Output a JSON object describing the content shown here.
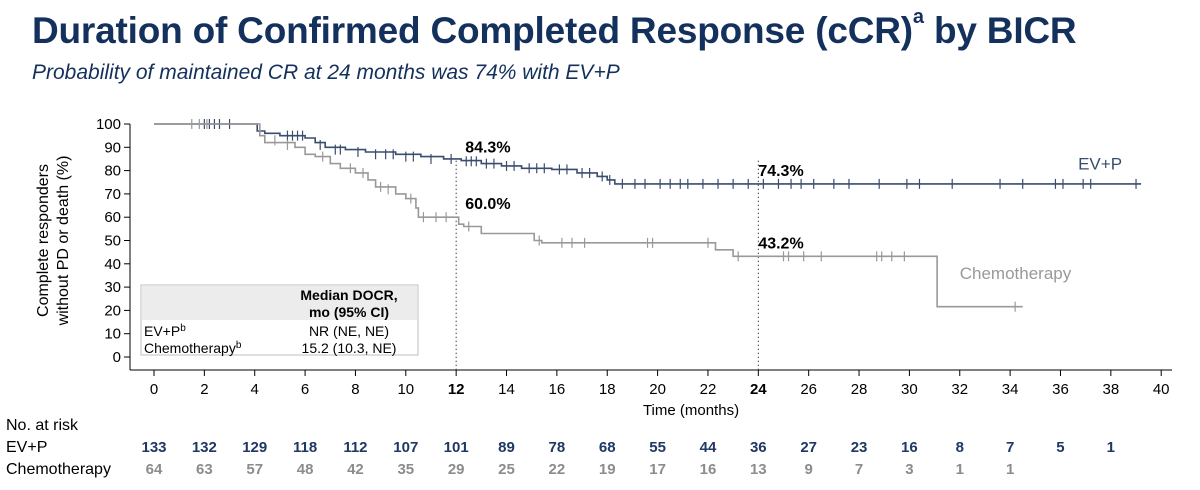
{
  "title": "Duration of Confirmed Completed Response (cCR)",
  "title_superscript": "a",
  "title_suffix": "by BICR",
  "subtitle": "Probability of maintained CR at 24 months was 74% with EV+P",
  "colors": {
    "evp": "#3a4d6e",
    "chemo": "#999999",
    "title": "#14305c",
    "evp_risk": "#1f3864",
    "chemo_risk": "#8c8c8c"
  },
  "chart_data": {
    "type": "line",
    "subtype": "kaplan-meier",
    "xlabel": "Time (months)",
    "ylabel": [
      "Complete responders",
      "without PD or death (%)"
    ],
    "xlim": [
      -1,
      40.5
    ],
    "ylim": [
      0,
      100
    ],
    "xticks": [
      0,
      2,
      4,
      6,
      8,
      10,
      12,
      14,
      16,
      18,
      20,
      22,
      24,
      26,
      28,
      30,
      32,
      34,
      36,
      38,
      40
    ],
    "xticks_bold": [
      12,
      24
    ],
    "yticks": [
      0,
      10,
      20,
      30,
      40,
      50,
      60,
      70,
      80,
      90,
      100
    ],
    "series": [
      {
        "name": "EV+P",
        "label_position": [
          36.7,
          80.5
        ],
        "steps": [
          [
            0,
            100
          ],
          [
            3.9,
            100
          ],
          [
            4.1,
            97
          ],
          [
            4.4,
            96
          ],
          [
            5,
            95
          ],
          [
            6,
            94
          ],
          [
            6.4,
            92
          ],
          [
            6.8,
            90
          ],
          [
            7.6,
            89
          ],
          [
            8.4,
            88
          ],
          [
            9.6,
            87
          ],
          [
            10.6,
            86
          ],
          [
            11.5,
            85
          ],
          [
            12.2,
            84.3
          ],
          [
            13,
            83
          ],
          [
            13.8,
            82
          ],
          [
            14.6,
            81
          ],
          [
            15.8,
            80.5
          ],
          [
            16.8,
            79
          ],
          [
            17.6,
            77.5
          ],
          [
            18,
            76
          ],
          [
            18.3,
            74.3
          ],
          [
            39.2,
            74.3
          ]
        ],
        "censors": [
          [
            2,
            100
          ],
          [
            2.2,
            100
          ],
          [
            2.4,
            100
          ],
          [
            2.6,
            100
          ],
          [
            3,
            100
          ],
          [
            5.3,
            95
          ],
          [
            5.5,
            95
          ],
          [
            5.7,
            95
          ],
          [
            5.9,
            95
          ],
          [
            6.6,
            91
          ],
          [
            7.2,
            89
          ],
          [
            7.4,
            89
          ],
          [
            8.1,
            88
          ],
          [
            8.8,
            87
          ],
          [
            9.2,
            87
          ],
          [
            9.5,
            87
          ],
          [
            10,
            86
          ],
          [
            10.3,
            86
          ],
          [
            11,
            85
          ],
          [
            11.8,
            85
          ],
          [
            12.4,
            84
          ],
          [
            12.6,
            84
          ],
          [
            12.8,
            84
          ],
          [
            13.2,
            83
          ],
          [
            13.5,
            83
          ],
          [
            14,
            82
          ],
          [
            14.3,
            82
          ],
          [
            14.9,
            81
          ],
          [
            15.2,
            81
          ],
          [
            15.5,
            81
          ],
          [
            16.1,
            80.5
          ],
          [
            16.4,
            80.5
          ],
          [
            17,
            79
          ],
          [
            17.3,
            79
          ],
          [
            17.8,
            77.5
          ],
          [
            18.1,
            76
          ],
          [
            18.6,
            74.3
          ],
          [
            19.1,
            74.3
          ],
          [
            19.5,
            74.3
          ],
          [
            20.1,
            74.3
          ],
          [
            20.5,
            74.3
          ],
          [
            20.9,
            74.3
          ],
          [
            21.2,
            74.3
          ],
          [
            21.8,
            74.3
          ],
          [
            22.4,
            74.3
          ],
          [
            23,
            74.3
          ],
          [
            23.6,
            74.3
          ],
          [
            24.2,
            74.3
          ],
          [
            24.8,
            74.3
          ],
          [
            25.3,
            74.3
          ],
          [
            25.7,
            74.3
          ],
          [
            26.2,
            74.3
          ],
          [
            27,
            74.3
          ],
          [
            27.6,
            74.3
          ],
          [
            28.8,
            74.3
          ],
          [
            29.9,
            74.3
          ],
          [
            30.4,
            74.3
          ],
          [
            31.7,
            74.3
          ],
          [
            33.6,
            74.3
          ],
          [
            34.5,
            74.3
          ],
          [
            35.8,
            74.3
          ],
          [
            36.1,
            74.3
          ],
          [
            36.9,
            74.3
          ],
          [
            37.2,
            74.3
          ],
          [
            39,
            74.3
          ]
        ]
      },
      {
        "name": "Chemotherapy",
        "label_position": [
          32,
          33.5
        ],
        "steps": [
          [
            0,
            100
          ],
          [
            3.9,
            100
          ],
          [
            4.2,
            95
          ],
          [
            4.4,
            92
          ],
          [
            5.6,
            90
          ],
          [
            6,
            87
          ],
          [
            6.4,
            86
          ],
          [
            7,
            83
          ],
          [
            7.4,
            81
          ],
          [
            8,
            79
          ],
          [
            8.5,
            76
          ],
          [
            8.8,
            73
          ],
          [
            9.6,
            70
          ],
          [
            10,
            68
          ],
          [
            10.4,
            64
          ],
          [
            10.5,
            60
          ],
          [
            12,
            60
          ],
          [
            12.1,
            57
          ],
          [
            12.3,
            56
          ],
          [
            13,
            53
          ],
          [
            15,
            53
          ],
          [
            15.1,
            50
          ],
          [
            15.4,
            49
          ],
          [
            22.2,
            49
          ],
          [
            22.3,
            46
          ],
          [
            23,
            43.2
          ],
          [
            31,
            43.2
          ],
          [
            31.1,
            21.6
          ],
          [
            34.5,
            21.6
          ]
        ],
        "censors": [
          [
            1.5,
            100
          ],
          [
            1.8,
            100
          ],
          [
            2.1,
            100
          ],
          [
            4.8,
            93
          ],
          [
            5.3,
            91
          ],
          [
            6.7,
            86
          ],
          [
            7.8,
            81
          ],
          [
            8.3,
            79
          ],
          [
            9,
            73
          ],
          [
            9.3,
            72
          ],
          [
            10.2,
            68
          ],
          [
            10.7,
            60
          ],
          [
            11.2,
            60
          ],
          [
            11.6,
            60
          ],
          [
            12.5,
            56
          ],
          [
            15.3,
            50
          ],
          [
            16.2,
            49
          ],
          [
            16.6,
            49
          ],
          [
            17.1,
            49
          ],
          [
            19.6,
            49
          ],
          [
            19.8,
            49
          ],
          [
            22,
            49
          ],
          [
            23.2,
            43.2
          ],
          [
            25,
            43.2
          ],
          [
            25.2,
            43.2
          ],
          [
            25.8,
            43.2
          ],
          [
            26.5,
            43.2
          ],
          [
            28.7,
            43.2
          ],
          [
            28.9,
            43.2
          ],
          [
            29.3,
            43.2
          ],
          [
            29.8,
            43.2
          ],
          [
            34.2,
            21.6
          ]
        ]
      }
    ],
    "vlines": [
      12,
      24
    ],
    "annotations": [
      {
        "x": 12.2,
        "y": 84.3,
        "text": "84.3%",
        "dx": 4,
        "dy": -8
      },
      {
        "x": 24,
        "y": 74.3,
        "text": "74.3%",
        "dx": 0,
        "dy": -8
      },
      {
        "x": 12.2,
        "y": 60.0,
        "text": "60.0%",
        "dx": 4,
        "dy": -8
      },
      {
        "x": 24,
        "y": 43.2,
        "text": "43.2%",
        "dx": 0,
        "dy": -8
      }
    ],
    "legend_table": {
      "header": [
        "Median DOCR,",
        "mo (95% CI)"
      ],
      "rows": [
        {
          "name": "EV+P",
          "sup": "b",
          "value": "NR (NE, NE)"
        },
        {
          "name": "Chemotherapy",
          "sup": "b",
          "value": "15.2 (10.3, NE)"
        }
      ]
    },
    "at_risk": {
      "title": "No. at risk",
      "times": [
        0,
        2,
        4,
        6,
        8,
        10,
        12,
        14,
        16,
        18,
        20,
        22,
        24,
        26,
        28,
        30,
        32,
        34,
        36,
        38
      ],
      "rows": [
        {
          "name": "EV+P",
          "values": [
            133,
            132,
            129,
            118,
            112,
            107,
            101,
            89,
            78,
            68,
            55,
            44,
            36,
            27,
            23,
            16,
            8,
            7,
            5,
            1
          ]
        },
        {
          "name": "Chemotherapy",
          "values": [
            64,
            63,
            57,
            48,
            42,
            35,
            29,
            25,
            22,
            19,
            17,
            16,
            13,
            9,
            7,
            3,
            1,
            1,
            null,
            null
          ]
        }
      ]
    }
  }
}
